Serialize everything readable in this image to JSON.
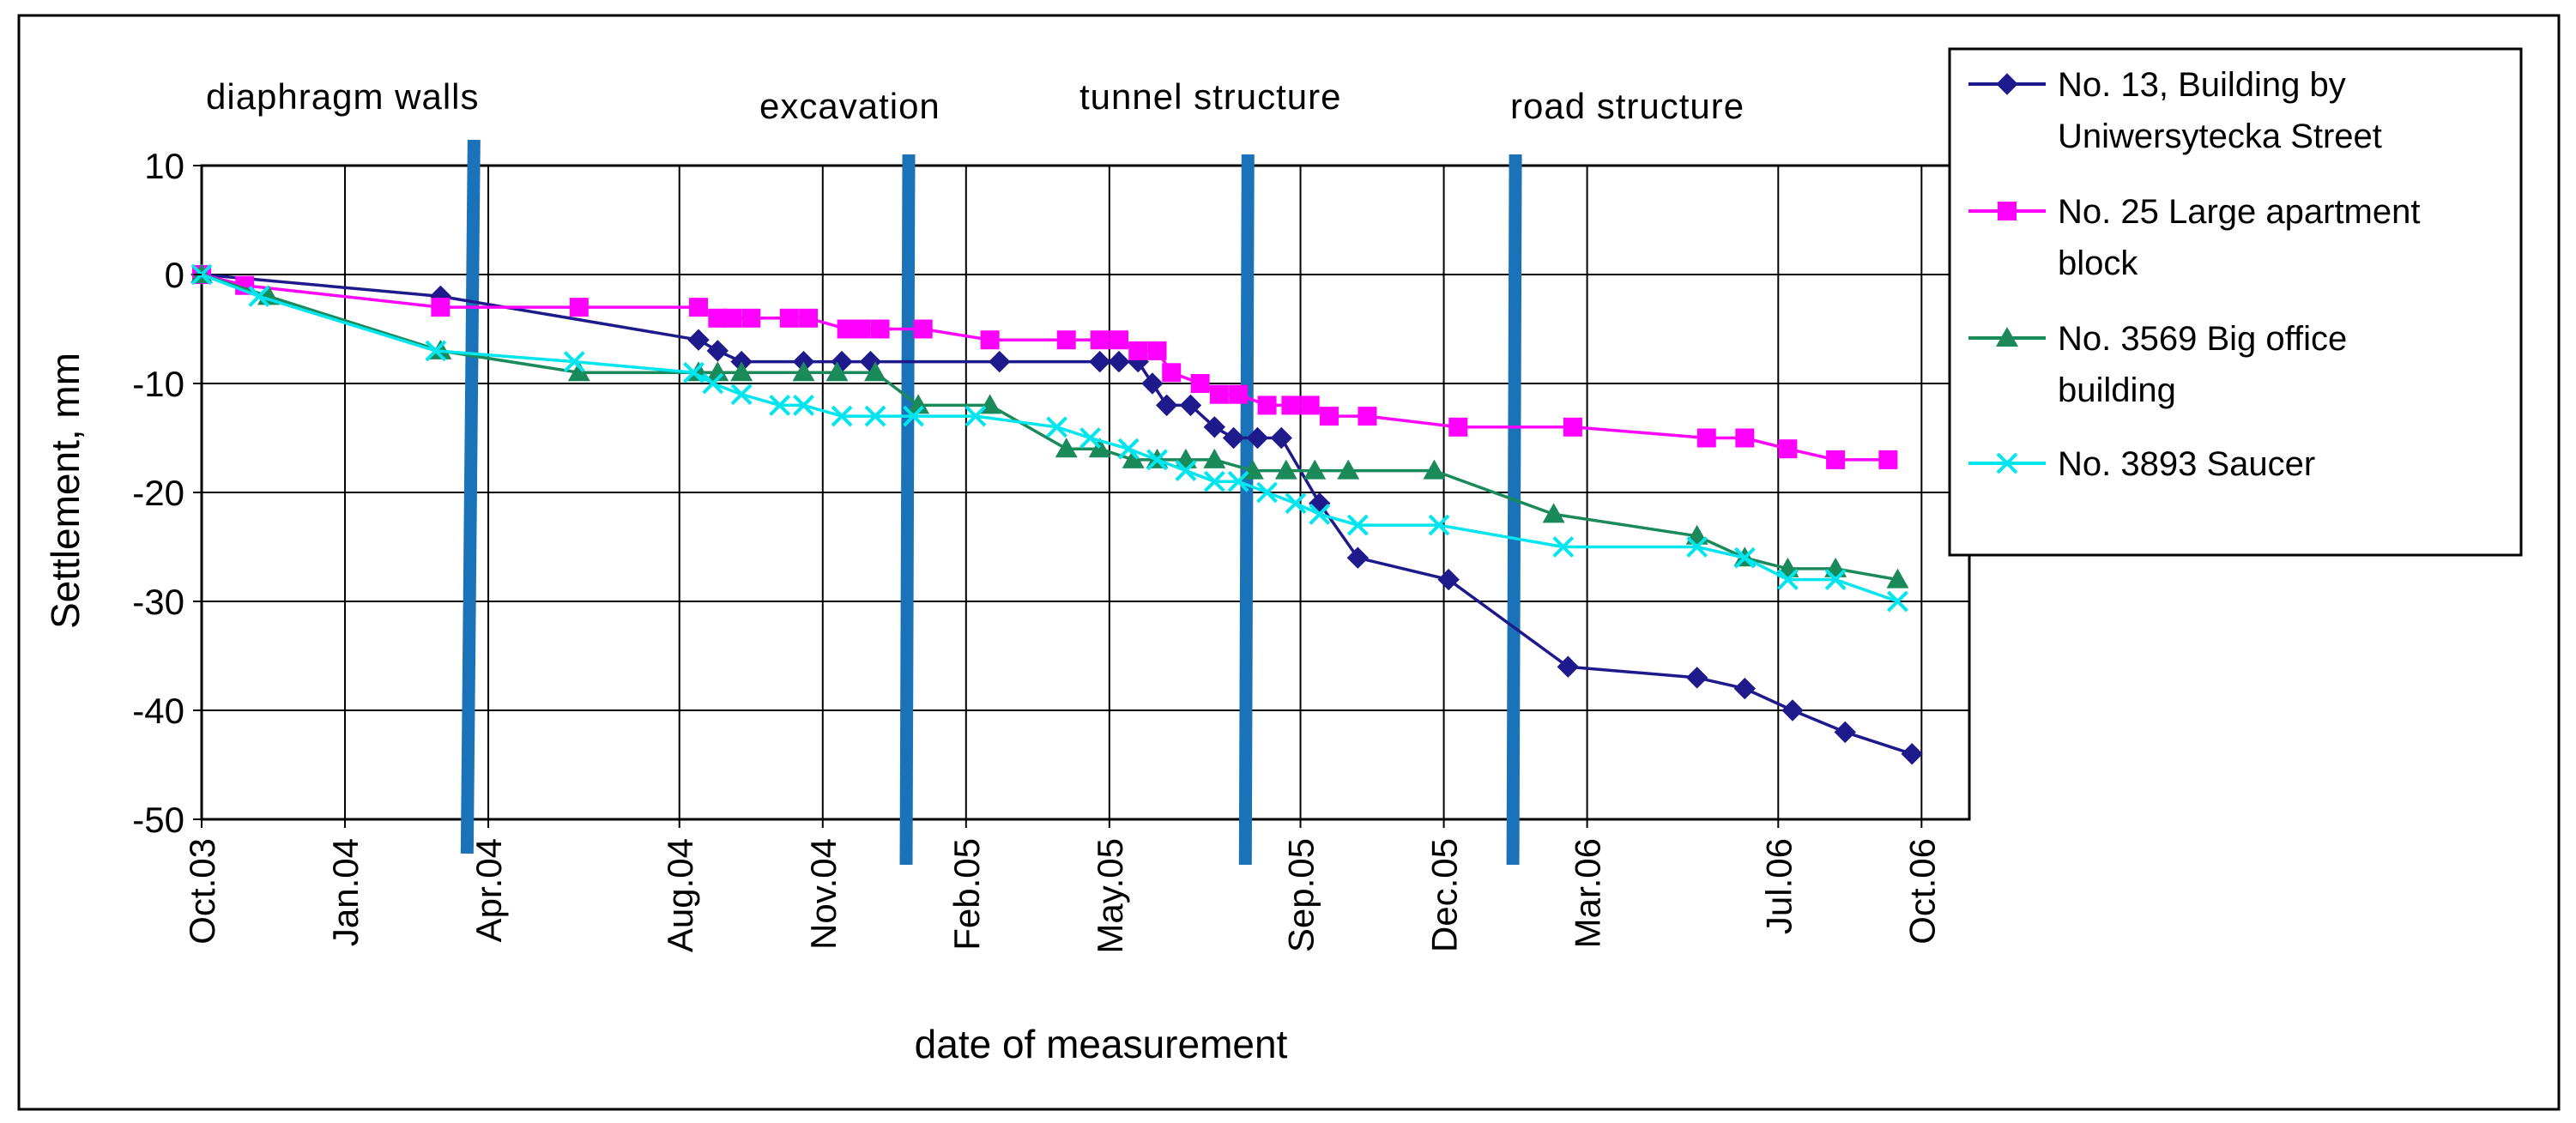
{
  "chart_data": {
    "type": "line",
    "title": "",
    "xlabel": "date of measurement",
    "ylabel": "Settlement, mm",
    "xlim": [
      0,
      37
    ],
    "ylim": [
      -50,
      10
    ],
    "grid": true,
    "legend_position": "right",
    "x_unit": "months since Oct.03",
    "x_ticks": [
      {
        "label": "Oct.03",
        "value": 0
      },
      {
        "label": "Jan.04",
        "value": 3
      },
      {
        "label": "Apr.04",
        "value": 6
      },
      {
        "label": "Aug.04",
        "value": 10
      },
      {
        "label": "Nov.04",
        "value": 13
      },
      {
        "label": "Feb.05",
        "value": 16
      },
      {
        "label": "May.05",
        "value": 19
      },
      {
        "label": "Sep.05",
        "value": 23
      },
      {
        "label": "Dec.05",
        "value": 26
      },
      {
        "label": "Mar.06",
        "value": 29
      },
      {
        "label": "Jul.06",
        "value": 33
      },
      {
        "label": "Oct.06",
        "value": 36
      }
    ],
    "y_ticks": [
      10,
      0,
      -10,
      -20,
      -30,
      -40,
      -50
    ],
    "phases": [
      {
        "label": "diaphragm walls",
        "x": 5.7
      },
      {
        "label": "excavation",
        "x": 14.8
      },
      {
        "label": "tunnel structure",
        "x": 21.9
      },
      {
        "label": "road structure",
        "x": 27.5
      }
    ],
    "series": [
      {
        "name": "No. 13, Building by Uniwersytecka Street",
        "color": "#1f1a8c",
        "marker": "diamond",
        "points": [
          [
            0,
            0
          ],
          [
            5,
            -2
          ],
          [
            10.4,
            -6
          ],
          [
            10.8,
            -7
          ],
          [
            11.3,
            -8
          ],
          [
            12.6,
            -8
          ],
          [
            13.4,
            -8
          ],
          [
            14,
            -8
          ],
          [
            16.7,
            -8
          ],
          [
            18.8,
            -8
          ],
          [
            19.2,
            -8
          ],
          [
            19.6,
            -8
          ],
          [
            19.9,
            -10
          ],
          [
            20.2,
            -12
          ],
          [
            20.7,
            -12
          ],
          [
            21.2,
            -14
          ],
          [
            21.6,
            -15
          ],
          [
            22.1,
            -15
          ],
          [
            22.6,
            -15
          ],
          [
            23.4,
            -21
          ],
          [
            24.2,
            -26
          ],
          [
            26.1,
            -28
          ],
          [
            28.6,
            -36
          ],
          [
            31.3,
            -37
          ],
          [
            32.3,
            -38
          ],
          [
            33.3,
            -40
          ],
          [
            34.4,
            -42
          ],
          [
            35.8,
            -44
          ]
        ]
      },
      {
        "name": "No. 25 Large apartment block",
        "color": "#ff00ff",
        "marker": "square",
        "points": [
          [
            0,
            0
          ],
          [
            0.9,
            -1
          ],
          [
            5,
            -3
          ],
          [
            7.9,
            -3
          ],
          [
            10.4,
            -3
          ],
          [
            10.8,
            -4
          ],
          [
            11.1,
            -4
          ],
          [
            11.5,
            -4
          ],
          [
            12.3,
            -4
          ],
          [
            12.7,
            -4
          ],
          [
            13.5,
            -5
          ],
          [
            13.8,
            -5
          ],
          [
            14.2,
            -5
          ],
          [
            15.1,
            -5
          ],
          [
            16.5,
            -6
          ],
          [
            18.1,
            -6
          ],
          [
            18.8,
            -6
          ],
          [
            19.2,
            -6
          ],
          [
            19.6,
            -7
          ],
          [
            20,
            -7
          ],
          [
            20.3,
            -9
          ],
          [
            20.9,
            -10
          ],
          [
            21.3,
            -11
          ],
          [
            21.7,
            -11
          ],
          [
            22.3,
            -12
          ],
          [
            22.8,
            -12
          ],
          [
            23.2,
            -12
          ],
          [
            23.6,
            -13
          ],
          [
            24.4,
            -13
          ],
          [
            26.3,
            -14
          ],
          [
            28.7,
            -14
          ],
          [
            31.5,
            -15
          ],
          [
            32.3,
            -15
          ],
          [
            33.2,
            -16
          ],
          [
            34.2,
            -17
          ],
          [
            35.3,
            -17
          ]
        ]
      },
      {
        "name": "No. 3569 Big office building",
        "color": "#1a8a5a",
        "marker": "triangle",
        "points": [
          [
            0,
            0
          ],
          [
            1.4,
            -2
          ],
          [
            5,
            -7
          ],
          [
            7.9,
            -9
          ],
          [
            10.4,
            -9
          ],
          [
            10.8,
            -9
          ],
          [
            11.3,
            -9
          ],
          [
            12.6,
            -9
          ],
          [
            13.3,
            -9
          ],
          [
            14.1,
            -9
          ],
          [
            15,
            -12
          ],
          [
            16.5,
            -12
          ],
          [
            18.1,
            -16
          ],
          [
            18.8,
            -16
          ],
          [
            19.5,
            -17
          ],
          [
            20,
            -17
          ],
          [
            20.6,
            -17
          ],
          [
            21.2,
            -17
          ],
          [
            22,
            -18
          ],
          [
            22.7,
            -18
          ],
          [
            23.3,
            -18
          ],
          [
            24,
            -18
          ],
          [
            25.8,
            -18
          ],
          [
            28.3,
            -22
          ],
          [
            31.3,
            -24
          ],
          [
            32.3,
            -26
          ],
          [
            33.2,
            -27
          ],
          [
            34.2,
            -27
          ],
          [
            35.5,
            -28
          ]
        ]
      },
      {
        "name": "No. 3893 Saucer",
        "color": "#00e5ee",
        "marker": "x",
        "points": [
          [
            0,
            0
          ],
          [
            1.2,
            -2
          ],
          [
            4.9,
            -7
          ],
          [
            7.8,
            -8
          ],
          [
            10.3,
            -9
          ],
          [
            10.7,
            -10
          ],
          [
            11.3,
            -11
          ],
          [
            12.1,
            -12
          ],
          [
            12.6,
            -12
          ],
          [
            13.4,
            -13
          ],
          [
            14.1,
            -13
          ],
          [
            14.9,
            -13
          ],
          [
            16.2,
            -13
          ],
          [
            17.9,
            -14
          ],
          [
            18.6,
            -15
          ],
          [
            19.4,
            -16
          ],
          [
            20,
            -17
          ],
          [
            20.6,
            -18
          ],
          [
            21.2,
            -19
          ],
          [
            21.7,
            -19
          ],
          [
            22.3,
            -20
          ],
          [
            22.9,
            -21
          ],
          [
            23.4,
            -22
          ],
          [
            24.2,
            -23
          ],
          [
            25.9,
            -23
          ],
          [
            28.5,
            -25
          ],
          [
            31.3,
            -25
          ],
          [
            32.3,
            -26
          ],
          [
            33.2,
            -28
          ],
          [
            34.2,
            -28
          ],
          [
            35.5,
            -30
          ]
        ]
      }
    ],
    "legend": [
      {
        "lines": [
          "No. 13, Building by",
          "Uniwersytecka Street"
        ]
      },
      {
        "lines": [
          "No. 25 Large apartment",
          "block"
        ]
      },
      {
        "lines": [
          "No. 3569 Big office",
          "building"
        ]
      },
      {
        "lines": [
          "No. 3893 Saucer"
        ]
      }
    ],
    "phase_line_color": "#1a73b8"
  }
}
